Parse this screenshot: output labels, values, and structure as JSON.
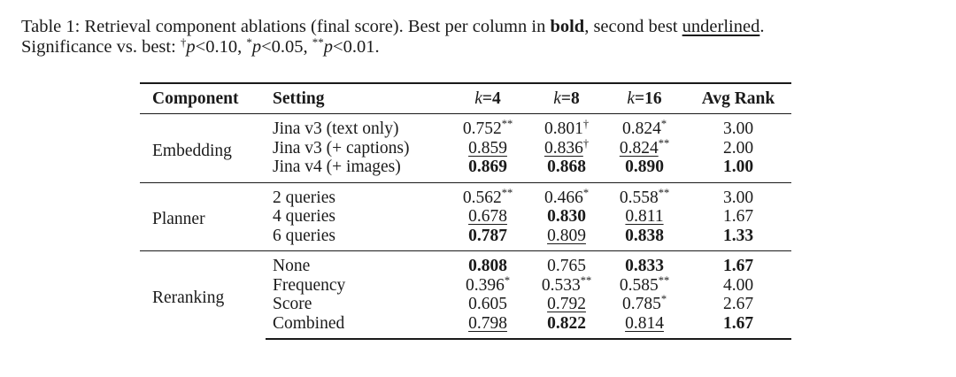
{
  "caption": {
    "line1_a": "Table 1: Retrieval component ablations (final score).  Best per column in ",
    "line1_bold": "bold",
    "line1_b": ", second best ",
    "line1_underlined": "underlined",
    "line1_c": ".",
    "line2_a": "Significance vs. best: ",
    "sig1_mark": "†",
    "sig1_p": "p",
    "sig1_val": "<0.10, ",
    "sig2_mark": "*",
    "sig2_p": "p",
    "sig2_val": "<0.05, ",
    "sig3_mark": "**",
    "sig3_p": "p",
    "sig3_val": "<0.01."
  },
  "table": {
    "headers": {
      "component": "Component",
      "setting": "Setting",
      "k4_var": "k",
      "k4_val": "=4",
      "k8_var": "k",
      "k8_val": "=8",
      "k16_var": "k",
      "k16_val": "=16",
      "avg_rank": "Avg Rank"
    },
    "groups": [
      {
        "component": "Embedding",
        "rows": [
          {
            "setting": "Jina v3 (text only)",
            "k4": "0.752",
            "k4_sig": "**",
            "k8": "0.801",
            "k8_sig": "†",
            "k16": "0.824",
            "k16_sig": "*",
            "avg": "3.00"
          },
          {
            "setting": "Jina v3 (+ captions)",
            "k4": "0.859",
            "k4_sig": "",
            "k8": "0.836",
            "k8_sig": "†",
            "k16": "0.824",
            "k16_sig": "**",
            "avg": "2.00"
          },
          {
            "setting": "Jina v4 (+ images)",
            "k4": "0.869",
            "k4_sig": "",
            "k8": "0.868",
            "k8_sig": "",
            "k16": "0.890",
            "k16_sig": "",
            "avg": "1.00"
          }
        ]
      },
      {
        "component": "Planner",
        "rows": [
          {
            "setting": "2 queries",
            "k4": "0.562",
            "k4_sig": "**",
            "k8": "0.466",
            "k8_sig": "*",
            "k16": "0.558",
            "k16_sig": "**",
            "avg": "3.00"
          },
          {
            "setting": "4 queries",
            "k4": "0.678",
            "k4_sig": "",
            "k8": "0.830",
            "k8_sig": "",
            "k16": "0.811",
            "k16_sig": "",
            "avg": "1.67"
          },
          {
            "setting": "6 queries",
            "k4": "0.787",
            "k4_sig": "",
            "k8": "0.809",
            "k8_sig": "",
            "k16": "0.838",
            "k16_sig": "",
            "avg": "1.33"
          }
        ]
      },
      {
        "component": "Reranking",
        "rows": [
          {
            "setting": "None",
            "k4": "0.808",
            "k4_sig": "",
            "k8": "0.765",
            "k8_sig": "",
            "k16": "0.833",
            "k16_sig": "",
            "avg": "1.67"
          },
          {
            "setting": "Frequency",
            "k4": "0.396",
            "k4_sig": "*",
            "k8": "0.533",
            "k8_sig": "**",
            "k16": "0.585",
            "k16_sig": "**",
            "avg": "4.00"
          },
          {
            "setting": "Score",
            "k4": "0.605",
            "k4_sig": "",
            "k8": "0.792",
            "k8_sig": "",
            "k16": "0.785",
            "k16_sig": "*",
            "avg": "2.67"
          },
          {
            "setting": "Combined",
            "k4": "0.798",
            "k4_sig": "",
            "k8": "0.822",
            "k8_sig": "",
            "k16": "0.814",
            "k16_sig": "",
            "avg": "1.67"
          }
        ]
      }
    ]
  }
}
